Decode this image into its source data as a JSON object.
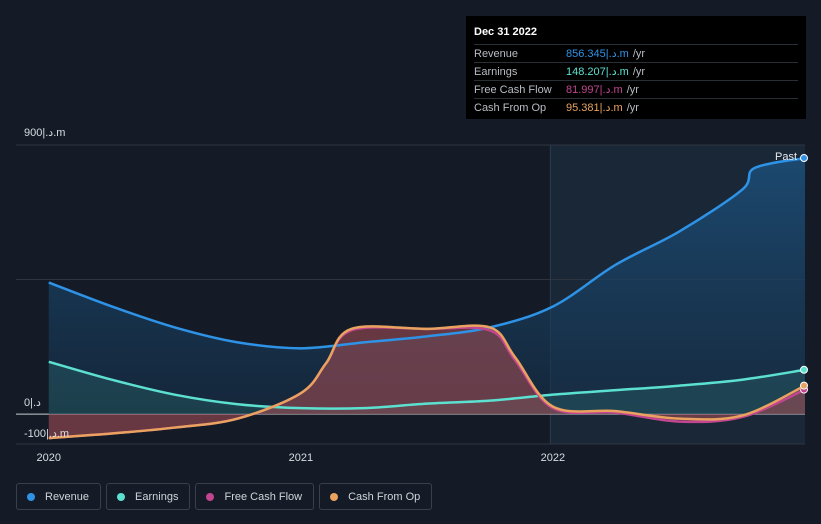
{
  "chart_data": {
    "type": "area",
    "y_unit_suffix": "|.د.m",
    "ylim": [
      -100,
      900
    ],
    "y_ticks": [
      {
        "value": 900,
        "label": "900|.د.m"
      },
      {
        "value": 0,
        "label": "0|.د"
      },
      {
        "value": -100,
        "label": "-100|.د.m"
      }
    ],
    "x_ticks": [
      {
        "value": 2020.0,
        "label": "2020"
      },
      {
        "value": 2021.0,
        "label": "2021"
      },
      {
        "value": 2022.0,
        "label": "2022"
      }
    ],
    "xlim": [
      2019.87,
      2023.0
    ],
    "past_start": 2021.99,
    "past_label": "Past",
    "series": [
      {
        "name": "Revenue",
        "color": "#2e93e6",
        "x": [
          2020.0,
          2020.25,
          2020.5,
          2020.75,
          2021.0,
          2021.25,
          2021.5,
          2021.75,
          2022.0,
          2022.25,
          2022.5,
          2022.75,
          2022.8,
          2023.0
        ],
        "values": [
          440,
          360,
          290,
          240,
          220,
          240,
          260,
          290,
          360,
          500,
          610,
          750,
          823,
          856.345
        ]
      },
      {
        "name": "Earnings",
        "color": "#5ce1d0",
        "x": [
          2020.0,
          2020.25,
          2020.5,
          2020.75,
          2021.0,
          2021.25,
          2021.5,
          2021.75,
          2022.0,
          2022.25,
          2022.5,
          2022.75,
          2023.0
        ],
        "values": [
          175,
          115,
          65,
          33,
          20,
          20,
          35,
          45,
          65,
          80,
          95,
          115,
          148.207
        ]
      },
      {
        "name": "Free Cash Flow",
        "color": "#c2458f",
        "x": [
          2020.0,
          2020.25,
          2020.5,
          2020.75,
          2021.0,
          2021.1,
          2021.2,
          2021.5,
          2021.75,
          2021.85,
          2022.0,
          2022.25,
          2022.5,
          2022.75,
          2023.0
        ],
        "values": [
          -80,
          -65,
          -45,
          -15,
          70,
          170,
          280,
          285,
          280,
          180,
          20,
          5,
          -25,
          -10,
          81.997
        ]
      },
      {
        "name": "Cash From Op",
        "color": "#e9a25f",
        "x": [
          2020.0,
          2020.25,
          2020.5,
          2020.75,
          2021.0,
          2021.1,
          2021.2,
          2021.5,
          2021.75,
          2021.85,
          2022.0,
          2022.25,
          2022.5,
          2022.75,
          2023.0
        ],
        "values": [
          -80,
          -65,
          -45,
          -15,
          70,
          170,
          285,
          285,
          290,
          190,
          25,
          10,
          -15,
          -5,
          95.381
        ]
      }
    ]
  },
  "tooltip": {
    "date": "Dec 31 2022",
    "rows": [
      {
        "label": "Revenue",
        "value": "856.345|.د.m",
        "unit": "/yr",
        "color": "#2e93e6"
      },
      {
        "label": "Earnings",
        "value": "148.207|.د.m",
        "unit": "/yr",
        "color": "#5ce1d0"
      },
      {
        "label": "Free Cash Flow",
        "value": "81.997|.د.m",
        "unit": "/yr",
        "color": "#c2458f"
      },
      {
        "label": "Cash From Op",
        "value": "95.381|.د.m",
        "unit": "/yr",
        "color": "#e9a25f"
      }
    ]
  },
  "legend": [
    {
      "label": "Revenue",
      "color": "#2e93e6"
    },
    {
      "label": "Earnings",
      "color": "#5ce1d0"
    },
    {
      "label": "Free Cash Flow",
      "color": "#c2458f"
    },
    {
      "label": "Cash From Op",
      "color": "#e9a25f"
    }
  ]
}
